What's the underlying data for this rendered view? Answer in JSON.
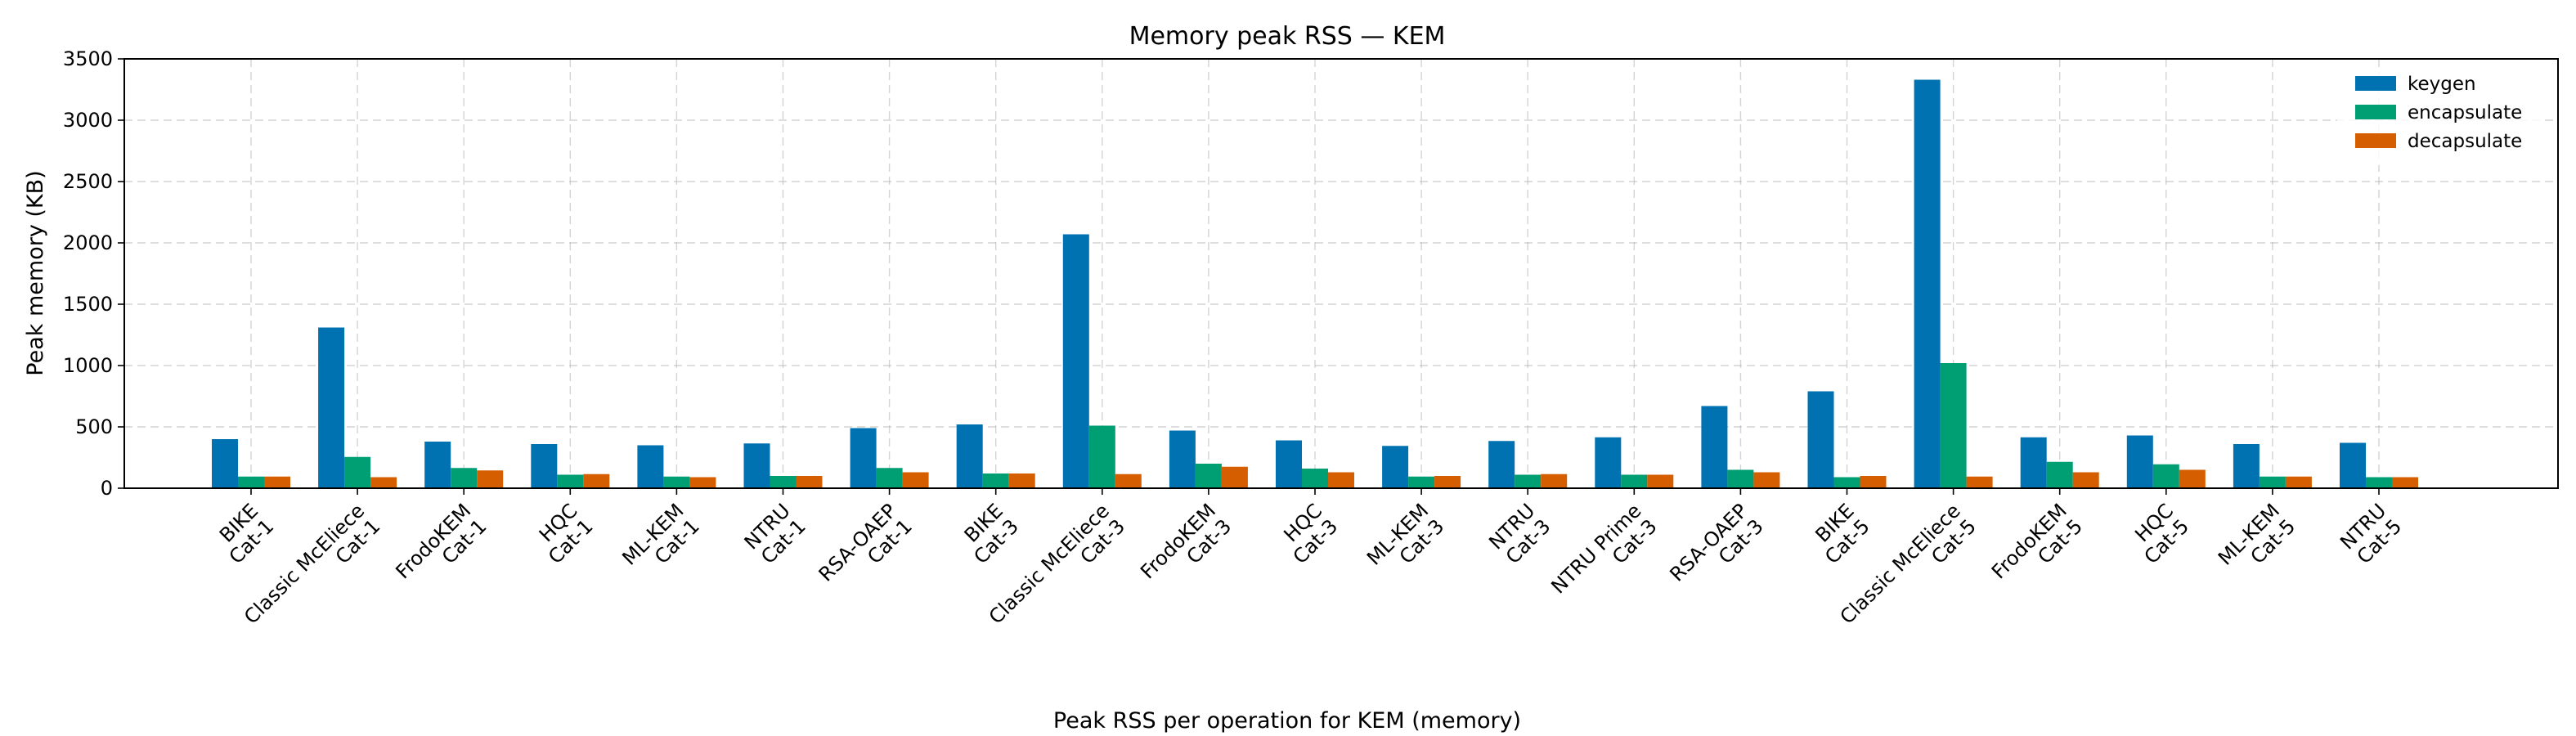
{
  "chart_data": {
    "type": "bar",
    "title": "Memory peak RSS — KEM",
    "xlabel": "Peak RSS per operation for KEM (memory)",
    "ylabel": "Peak memory (KB)",
    "ylim": [
      0,
      3500
    ],
    "yticks": [
      0,
      500,
      1000,
      1500,
      2000,
      2500,
      3000,
      3500
    ],
    "grid": true,
    "legend_position": "top-right",
    "categories": [
      [
        "BIKE",
        "Cat-1"
      ],
      [
        "Classic McEliece",
        "Cat-1"
      ],
      [
        "FrodoKEM",
        "Cat-1"
      ],
      [
        "HQC",
        "Cat-1"
      ],
      [
        "ML-KEM",
        "Cat-1"
      ],
      [
        "NTRU",
        "Cat-1"
      ],
      [
        "RSA-OAEP",
        "Cat-1"
      ],
      [
        "BIKE",
        "Cat-3"
      ],
      [
        "Classic McEliece",
        "Cat-3"
      ],
      [
        "FrodoKEM",
        "Cat-3"
      ],
      [
        "HQC",
        "Cat-3"
      ],
      [
        "ML-KEM",
        "Cat-3"
      ],
      [
        "NTRU",
        "Cat-3"
      ],
      [
        "NTRU Prime",
        "Cat-3"
      ],
      [
        "RSA-OAEP",
        "Cat-3"
      ],
      [
        "BIKE",
        "Cat-5"
      ],
      [
        "Classic McEliece",
        "Cat-5"
      ],
      [
        "FrodoKEM",
        "Cat-5"
      ],
      [
        "HQC",
        "Cat-5"
      ],
      [
        "ML-KEM",
        "Cat-5"
      ],
      [
        "NTRU",
        "Cat-5"
      ]
    ],
    "series": [
      {
        "name": "keygen",
        "color": "#0072b2",
        "values": [
          400,
          1310,
          380,
          360,
          350,
          365,
          490,
          520,
          2070,
          470,
          390,
          345,
          385,
          415,
          670,
          790,
          3330,
          415,
          430,
          360,
          370
        ]
      },
      {
        "name": "encapsulate",
        "color": "#009e73",
        "values": [
          95,
          255,
          165,
          110,
          95,
          100,
          165,
          120,
          510,
          200,
          160,
          95,
          110,
          110,
          150,
          90,
          1020,
          215,
          195,
          95,
          90
        ]
      },
      {
        "name": "decapsulate",
        "color": "#d55e00",
        "values": [
          95,
          90,
          145,
          115,
          90,
          100,
          130,
          120,
          115,
          175,
          130,
          100,
          115,
          110,
          130,
          100,
          95,
          130,
          150,
          95,
          90
        ]
      }
    ]
  }
}
